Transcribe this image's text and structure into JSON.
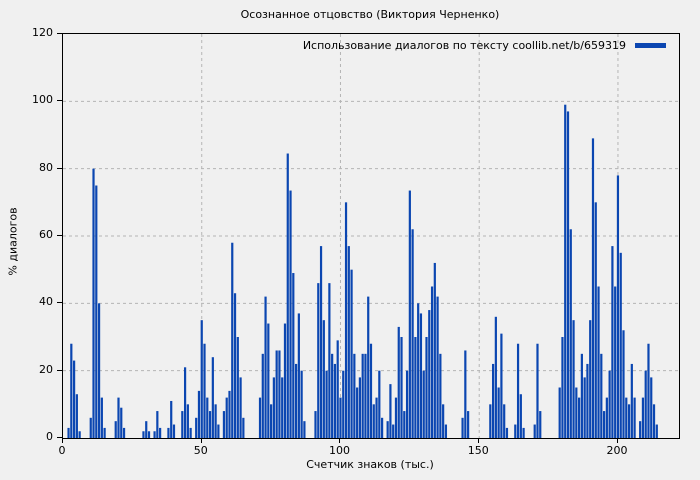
{
  "figure": {
    "title": "Осознанное отцовство (Виктория Черненко)",
    "background_color": "#f0f0f0"
  },
  "legend": {
    "label": "Использование диалогов по тексту coollib.net/b/659319",
    "swatch_color": "#0b46b1"
  },
  "axes": {
    "x_label": "Счетчик знаков (тыс.)",
    "y_label": "% диалогов",
    "x_ticks": [
      0,
      50,
      100,
      150,
      200
    ],
    "y_ticks": [
      0,
      20,
      40,
      60,
      80,
      100,
      120
    ]
  },
  "chart_data": {
    "type": "bar",
    "title": "Осознанное отцовство (Виктория Черненко)",
    "xlabel": "Счетчик знаков (тыс.)",
    "ylabel": "% диалогов",
    "legend": [
      "Использование диалогов по тексту coollib.net/b/659319"
    ],
    "legend_position": "top-right",
    "grid": true,
    "grid_style": "dashed",
    "grid_color": "#b5b5b5",
    "bar_color": "#0b46b1",
    "xlim": [
      0,
      222
    ],
    "ylim": [
      0,
      120
    ],
    "x_start": 0,
    "x_step": 1,
    "values": [
      0,
      0,
      3,
      28,
      23,
      13,
      2,
      0,
      0,
      0,
      6,
      80,
      75,
      40,
      12,
      3,
      0,
      0,
      0,
      5,
      12,
      9,
      3,
      0,
      0,
      0,
      0,
      0,
      0,
      2,
      5,
      2,
      0,
      2,
      8,
      3,
      0,
      0,
      3,
      11,
      4,
      0,
      0,
      8,
      21,
      10,
      3,
      0,
      6,
      14,
      35,
      28,
      12,
      8,
      24,
      10,
      4,
      0,
      8,
      12,
      14,
      58,
      43,
      30,
      18,
      6,
      0,
      0,
      0,
      0,
      0,
      12,
      25,
      42,
      34,
      10,
      18,
      26,
      26,
      18,
      34,
      84.5,
      73.5,
      49,
      22,
      37,
      20,
      5,
      0,
      0,
      0,
      8,
      46,
      57,
      35,
      20,
      46,
      25,
      22,
      29,
      12,
      20,
      70,
      57,
      50,
      25,
      15,
      18,
      25,
      25,
      42,
      28,
      10,
      12,
      20,
      6,
      0,
      5,
      16,
      4,
      12,
      33,
      30,
      8,
      20,
      73.5,
      62,
      30,
      40,
      37,
      20,
      30,
      38,
      45,
      52,
      42,
      25,
      10,
      4,
      0,
      0,
      0,
      0,
      0,
      6,
      26,
      8,
      0,
      0,
      0,
      0,
      0,
      0,
      0,
      10,
      22,
      36,
      15,
      31,
      10,
      3,
      0,
      0,
      4,
      28,
      13,
      3,
      0,
      0,
      0,
      4,
      28,
      8,
      0,
      0,
      0,
      0,
      0,
      0,
      15,
      30,
      99,
      97,
      62,
      35,
      15,
      12,
      25,
      18,
      22,
      35,
      89,
      70,
      45,
      25,
      8,
      12,
      20,
      57,
      45,
      78,
      55,
      32,
      12,
      10,
      22,
      12,
      0,
      5,
      12,
      20,
      28,
      18,
      10,
      4,
      0,
      0,
      0,
      0,
      0,
      0,
      0
    ]
  }
}
